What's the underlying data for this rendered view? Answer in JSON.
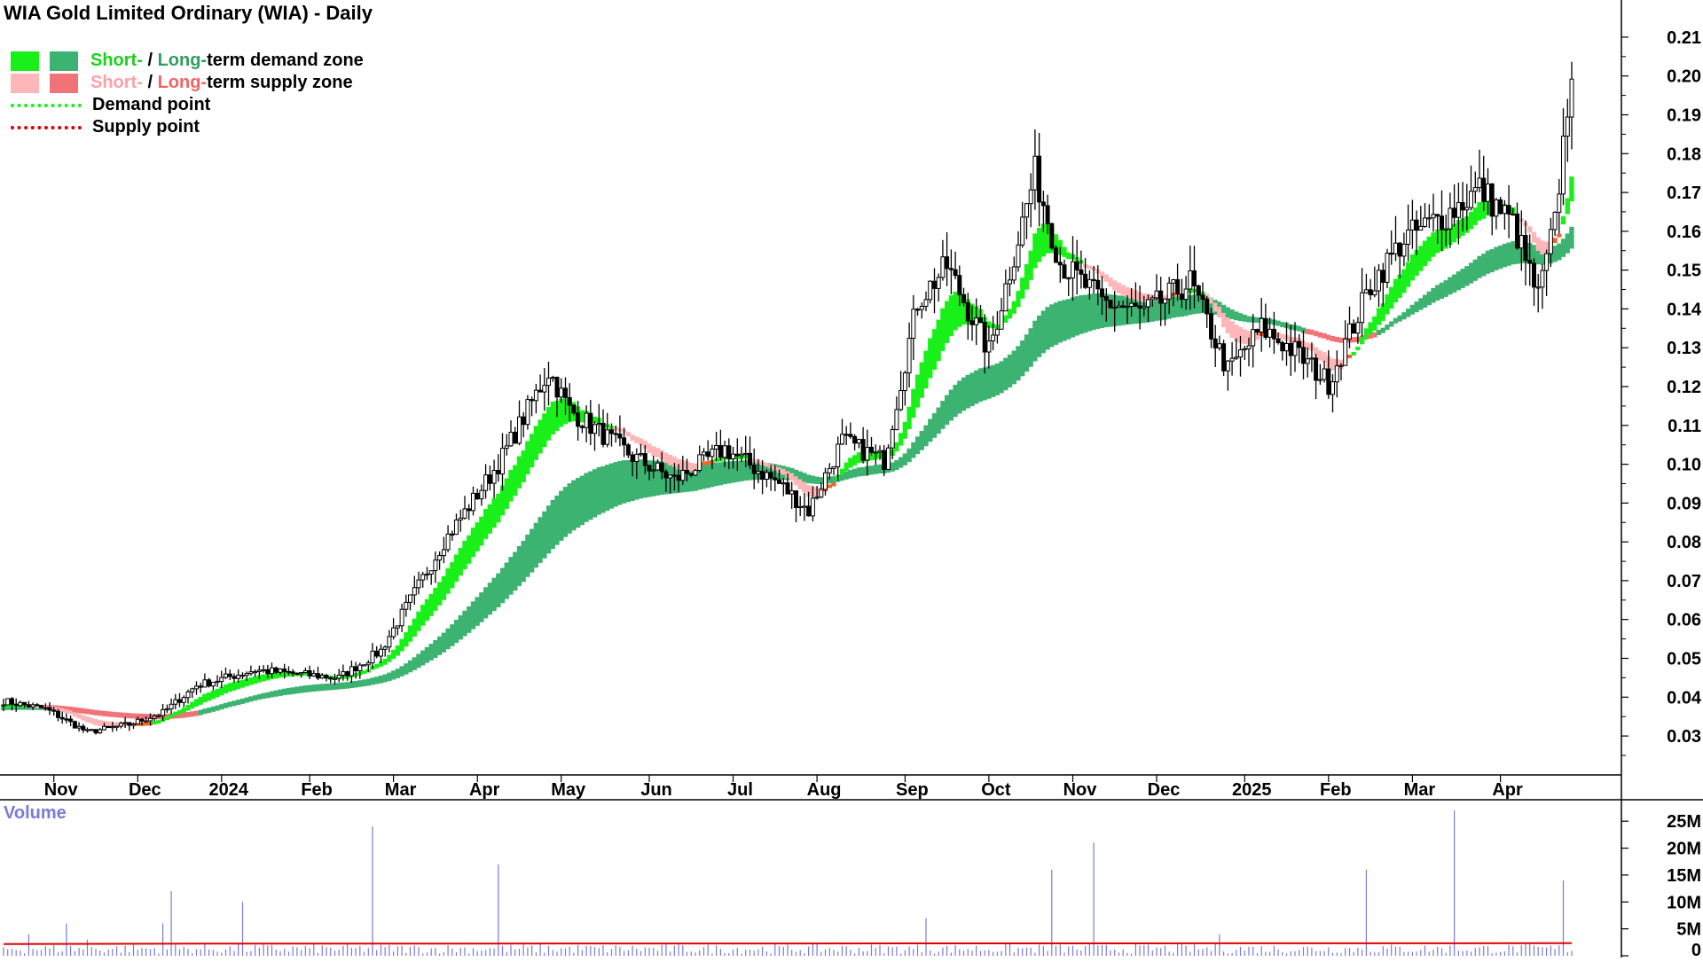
{
  "title": "WIA Gold Limited Ordinary (WIA) - Daily",
  "legend": {
    "row1": {
      "short": "Short-",
      "sep": " / ",
      "long": "Long-",
      "rest": "term demand zone"
    },
    "row2": {
      "short": "Short-",
      "sep": " / ",
      "long": "Long-",
      "rest": "term supply zone"
    },
    "row3": "Demand point",
    "row4": "Supply point"
  },
  "colors": {
    "short_demand": "#19f019",
    "long_demand": "#3cb371",
    "short_supply": "#ffb6b9",
    "long_supply": "#f07378",
    "orange_zone": "#f26522",
    "demand_point": "#19f019",
    "supply_point": "#e00000",
    "volume_bar": "#7b7bd6",
    "volume_ma": "#e00000",
    "candle": "#000000"
  },
  "volume_label": "Volume",
  "chart_data": {
    "type": "candlestick",
    "title": "WIA Gold Limited Ordinary (WIA) - Daily",
    "x_labels": [
      "Nov",
      "Dec",
      "2024",
      "Feb",
      "Mar",
      "Apr",
      "May",
      "Jun",
      "Jul",
      "Aug",
      "Sep",
      "Oct",
      "Nov",
      "Dec",
      "2025",
      "Feb",
      "Mar",
      "Apr"
    ],
    "y_ticks": [
      "0.21",
      "0.20",
      "0.19",
      "0.18",
      "0.17",
      "0.16",
      "0.15",
      "0.14",
      "0.13",
      "0.12",
      "0.11",
      "0.10",
      "0.09",
      "0.08",
      "0.07",
      "0.06",
      "0.05",
      "0.04",
      "0.03"
    ],
    "ylim": [
      0.025,
      0.215
    ],
    "price_path": [
      {
        "t": 0,
        "p": 0.039
      },
      {
        "t": 10,
        "p": 0.037
      },
      {
        "t": 20,
        "p": 0.031
      },
      {
        "t": 30,
        "p": 0.033
      },
      {
        "t": 38,
        "p": 0.036
      },
      {
        "t": 46,
        "p": 0.043
      },
      {
        "t": 60,
        "p": 0.047
      },
      {
        "t": 80,
        "p": 0.045
      },
      {
        "t": 90,
        "p": 0.052
      },
      {
        "t": 105,
        "p": 0.08
      },
      {
        "t": 118,
        "p": 0.1
      },
      {
        "t": 130,
        "p": 0.124
      },
      {
        "t": 135,
        "p": 0.114
      },
      {
        "t": 150,
        "p": 0.102
      },
      {
        "t": 160,
        "p": 0.096
      },
      {
        "t": 172,
        "p": 0.104
      },
      {
        "t": 185,
        "p": 0.095
      },
      {
        "t": 192,
        "p": 0.088
      },
      {
        "t": 200,
        "p": 0.106
      },
      {
        "t": 210,
        "p": 0.101
      },
      {
        "t": 218,
        "p": 0.142
      },
      {
        "t": 225,
        "p": 0.151
      },
      {
        "t": 235,
        "p": 0.129
      },
      {
        "t": 246,
        "p": 0.175
      },
      {
        "t": 252,
        "p": 0.152
      },
      {
        "t": 262,
        "p": 0.142
      },
      {
        "t": 272,
        "p": 0.139
      },
      {
        "t": 283,
        "p": 0.147
      },
      {
        "t": 292,
        "p": 0.124
      },
      {
        "t": 300,
        "p": 0.135
      },
      {
        "t": 308,
        "p": 0.129
      },
      {
        "t": 316,
        "p": 0.121
      },
      {
        "t": 326,
        "p": 0.146
      },
      {
        "t": 334,
        "p": 0.158
      },
      {
        "t": 345,
        "p": 0.165
      },
      {
        "t": 352,
        "p": 0.171
      },
      {
        "t": 360,
        "p": 0.162
      },
      {
        "t": 366,
        "p": 0.143
      },
      {
        "t": 370,
        "p": 0.162
      },
      {
        "t": 374,
        "p": 0.203
      }
    ],
    "bar_count": 375,
    "zones": {
      "short_term": "#19f019",
      "long_term": "#3cb371"
    },
    "volume": {
      "label": "Volume",
      "y_ticks": [
        "25M",
        "20M",
        "15M",
        "10M",
        "5M",
        "0"
      ],
      "ylim": [
        0,
        28
      ],
      "unit": "M",
      "spikes": [
        {
          "t": 6,
          "v": 4
        },
        {
          "t": 15,
          "v": 6
        },
        {
          "t": 20,
          "v": 3
        },
        {
          "t": 38,
          "v": 6
        },
        {
          "t": 40,
          "v": 12
        },
        {
          "t": 57,
          "v": 10
        },
        {
          "t": 88,
          "v": 24
        },
        {
          "t": 118,
          "v": 17
        },
        {
          "t": 220,
          "v": 7
        },
        {
          "t": 250,
          "v": 16
        },
        {
          "t": 260,
          "v": 21
        },
        {
          "t": 290,
          "v": 4
        },
        {
          "t": 325,
          "v": 16
        },
        {
          "t": 346,
          "v": 27
        },
        {
          "t": 372,
          "v": 14
        }
      ],
      "ma_level": 2.5
    }
  }
}
